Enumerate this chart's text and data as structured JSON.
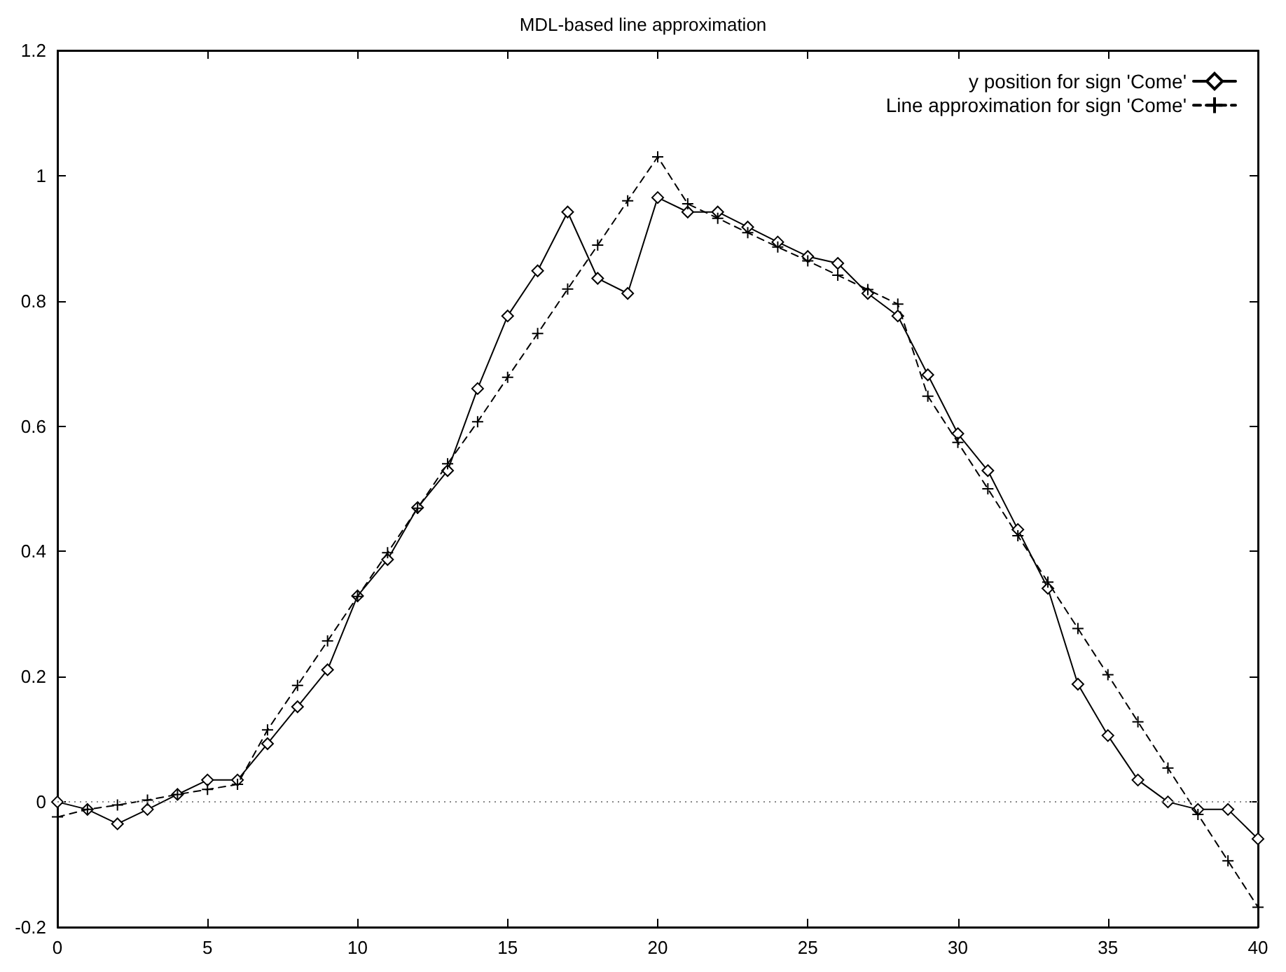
{
  "chart_data": {
    "type": "line",
    "title": "MDL-based line approximation",
    "x": [
      0,
      1,
      2,
      3,
      4,
      5,
      6,
      7,
      8,
      9,
      10,
      11,
      12,
      13,
      14,
      15,
      16,
      17,
      18,
      19,
      20,
      21,
      22,
      23,
      24,
      25,
      26,
      27,
      28,
      29,
      30,
      31,
      32,
      33,
      34,
      35,
      36,
      37,
      38,
      39,
      40
    ],
    "series": [
      {
        "name": "y position for sign 'Come'",
        "color": "#000000",
        "marker": "diamond",
        "line_style": "solid",
        "values": [
          0,
          -0.012,
          -0.035,
          -0.012,
          0.012,
          0.035,
          0.035,
          0.093,
          0.152,
          0.211,
          0.329,
          0.387,
          0.47,
          0.529,
          0.66,
          0.776,
          0.848,
          0.942,
          0.836,
          0.812,
          0.965,
          0.942,
          0.942,
          0.918,
          0.894,
          0.871,
          0.86,
          0.812,
          0.776,
          0.682,
          0.588,
          0.529,
          0.435,
          0.341,
          0.188,
          0.106,
          0.035,
          0,
          -0.012,
          -0.012,
          -0.059
        ]
      },
      {
        "name": "Line approximation for sign 'Come'",
        "color": "#000000",
        "marker": "cross",
        "line_style": "dashed",
        "values": [
          -0.024,
          -0.012,
          -0.005,
          0.003,
          0.012,
          0.02,
          0.028,
          0.115,
          0.186,
          0.257,
          0.328,
          0.398,
          0.469,
          0.54,
          0.607,
          0.678,
          0.748,
          0.819,
          0.889,
          0.96,
          1.03,
          0.955,
          0.932,
          0.909,
          0.886,
          0.864,
          0.841,
          0.818,
          0.795,
          0.648,
          0.574,
          0.5,
          0.425,
          0.351,
          0.277,
          0.203,
          0.128,
          0.054,
          -0.02,
          -0.094,
          -0.168
        ]
      }
    ],
    "xlim": [
      0,
      40
    ],
    "xticks": [
      0,
      5,
      10,
      15,
      20,
      25,
      30,
      35,
      40
    ],
    "ylim": [
      -0.2,
      1.2
    ],
    "yticks": [
      -0.2,
      0,
      0.2,
      0.4,
      0.6,
      0.8,
      1,
      1.2
    ],
    "ref_lines": [
      {
        "axis": "y",
        "value": 0,
        "label": null,
        "color": "#888888",
        "line_style": "dotted"
      }
    ],
    "grid": false,
    "legend": "top right"
  }
}
